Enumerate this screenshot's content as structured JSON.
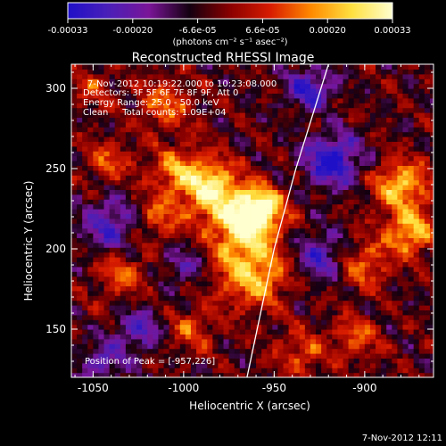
{
  "colorbar": {
    "ticks": [
      "-0.00033",
      "-0.00020",
      "-6.6e-05",
      "6.6e-05",
      "0.00020",
      "0.00033"
    ],
    "unit_label": "(photons cm⁻² s⁻¹ asec⁻²)",
    "stops": [
      "#1f10c8",
      "#4a1fb8",
      "#7a1598",
      "#140010",
      "#8a0000",
      "#d81c00",
      "#ff8a00",
      "#ffe040",
      "#ffffcf"
    ]
  },
  "chart_data": {
    "type": "heatmap",
    "title": "Reconstructed RHESSI Image",
    "xlabel": "Heliocentric X (arcsec)",
    "ylabel": "Heliocentric Y (arcsec)",
    "xlim": [
      -1062,
      -862
    ],
    "ylim": [
      120,
      315
    ],
    "zlim": [
      -0.00033,
      0.00033
    ],
    "x_ticks": [
      -1050,
      -1000,
      -950,
      -900
    ],
    "x_tick_labels": [
      "-1050",
      "-1000",
      "-950",
      "-900"
    ],
    "y_ticks": [
      150,
      200,
      250,
      300
    ],
    "y_tick_labels": [
      "150",
      "200",
      "250",
      "300"
    ],
    "annotations": [
      "7-Nov-2012 10:19:22.000 to 10:23:08.000",
      "Detectors: 3F 5F 6F 7F 8F 9F, Att 0",
      "Energy Range: 25.0 - 50.0 keV",
      "Clean     Total counts: 1.09E+04"
    ],
    "peak_label": "Position of Peak = [-957,226]",
    "peak_position": [
      -957,
      226
    ],
    "limb": [
      [
        -965,
        120
      ],
      [
        -950,
        200
      ],
      [
        -938,
        250
      ],
      [
        -920,
        315
      ]
    ],
    "bright_regions": [
      {
        "x": -985,
        "y": 238,
        "intensity": 1.0,
        "sigma": 12
      },
      {
        "x": -968,
        "y": 214,
        "intensity": 0.95,
        "sigma": 12
      },
      {
        "x": -957,
        "y": 226,
        "intensity": 1.0,
        "sigma": 9
      },
      {
        "x": -962,
        "y": 185,
        "intensity": 0.85,
        "sigma": 14
      },
      {
        "x": -1005,
        "y": 250,
        "intensity": 0.55,
        "sigma": 10
      },
      {
        "x": -1010,
        "y": 290,
        "intensity": 0.55,
        "sigma": 11
      },
      {
        "x": -1042,
        "y": 255,
        "intensity": 0.45,
        "sigma": 9
      },
      {
        "x": -1035,
        "y": 185,
        "intensity": 0.5,
        "sigma": 10
      },
      {
        "x": -1050,
        "y": 300,
        "intensity": 0.4,
        "sigma": 8
      },
      {
        "x": -935,
        "y": 135,
        "intensity": 0.45,
        "sigma": 10
      },
      {
        "x": -880,
        "y": 240,
        "intensity": 0.85,
        "sigma": 11
      },
      {
        "x": -875,
        "y": 210,
        "intensity": 0.8,
        "sigma": 10
      },
      {
        "x": -900,
        "y": 190,
        "intensity": 0.55,
        "sigma": 10
      },
      {
        "x": -905,
        "y": 145,
        "intensity": 0.5,
        "sigma": 9
      },
      {
        "x": -995,
        "y": 150,
        "intensity": 0.45,
        "sigma": 9
      },
      {
        "x": -1015,
        "y": 220,
        "intensity": 0.5,
        "sigma": 10
      }
    ],
    "dark_regions": [
      {
        "x": -1040,
        "y": 215,
        "intensity": 0.6,
        "sigma": 12
      },
      {
        "x": -918,
        "y": 255,
        "intensity": 0.9,
        "sigma": 11
      },
      {
        "x": -925,
        "y": 195,
        "intensity": 0.6,
        "sigma": 10
      },
      {
        "x": -930,
        "y": 300,
        "intensity": 0.7,
        "sigma": 9
      },
      {
        "x": -1025,
        "y": 150,
        "intensity": 0.55,
        "sigma": 9
      },
      {
        "x": -1000,
        "y": 190,
        "intensity": 0.45,
        "sigma": 8
      },
      {
        "x": -1045,
        "y": 130,
        "intensity": 0.5,
        "sigma": 9
      }
    ]
  },
  "footer": {
    "timestamp": "7-Nov-2012 12:11"
  }
}
